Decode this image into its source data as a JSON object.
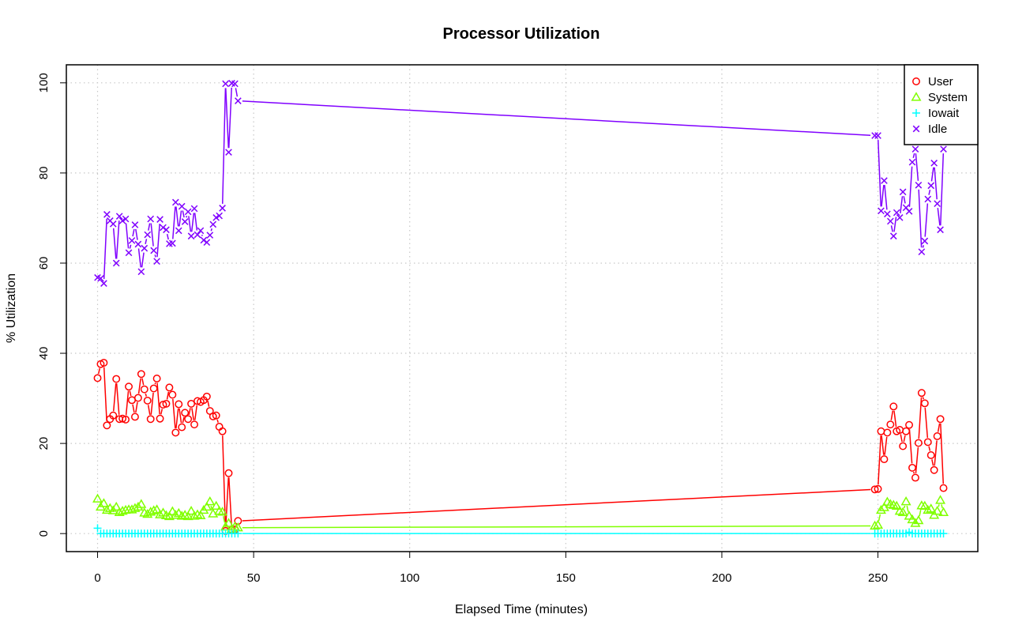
{
  "chart_data": {
    "type": "line",
    "title": "Processor Utilization",
    "xlabel": "Elapsed Time (minutes)",
    "ylabel": "% Utilization",
    "xlim": [
      -10,
      282
    ],
    "ylim": [
      -4,
      104
    ],
    "xticks": [
      0,
      50,
      100,
      150,
      200,
      250
    ],
    "yticks": [
      0,
      20,
      40,
      60,
      80,
      100
    ],
    "grid": true,
    "legend_position": "top-right",
    "x": [
      0,
      1,
      2,
      3,
      4,
      5,
      6,
      7,
      8,
      9,
      10,
      11,
      12,
      13,
      14,
      15,
      16,
      17,
      18,
      19,
      20,
      21,
      22,
      23,
      24,
      25,
      26,
      27,
      28,
      29,
      30,
      31,
      32,
      33,
      34,
      35,
      36,
      37,
      38,
      39,
      40,
      41,
      42,
      43,
      44,
      45,
      249,
      250,
      251,
      252,
      253,
      254,
      255,
      256,
      257,
      258,
      259,
      260,
      261,
      262,
      263,
      264,
      265,
      266,
      267,
      268,
      269,
      270,
      271
    ],
    "series": [
      {
        "name": "User",
        "color": "#ff0000",
        "marker": "circle",
        "values": [
          34.5,
          37.6,
          37.9,
          24,
          25.4,
          26.2,
          34.3,
          25.4,
          25.5,
          25.3,
          32.6,
          29.6,
          25.9,
          30.1,
          35.4,
          32,
          29.5,
          25.4,
          32.2,
          34.4,
          25.5,
          28.6,
          28.8,
          32.4,
          30.8,
          22.4,
          28.7,
          23.6,
          26.8,
          25.4,
          28.8,
          24.2,
          29.4,
          29.2,
          29.6,
          30.4,
          27.2,
          26.0,
          26.2,
          23.7,
          22.7,
          0.6,
          13.4,
          0.8,
          0.9,
          2.8,
          9.8,
          9.9,
          22.7,
          16.5,
          22.4,
          24.2,
          28.2,
          22.7,
          23.0,
          19.4,
          22.7,
          24.1,
          14.6,
          12.4,
          20.1,
          31.2,
          28.9,
          20.3,
          17.4,
          14.1,
          21.6,
          25.4,
          10.1
        ]
      },
      {
        "name": "System",
        "color": "#80ff00",
        "marker": "triangle",
        "values": [
          7.7,
          5.9,
          6.7,
          5.2,
          5.6,
          5.1,
          5.9,
          4.7,
          5.0,
          5.2,
          5.3,
          5.3,
          5.6,
          5.9,
          6.5,
          4.6,
          4.3,
          4.8,
          5.1,
          5.3,
          4.2,
          4.6,
          4.0,
          3.8,
          4.9,
          4.1,
          4.5,
          3.9,
          4.1,
          3.8,
          5.0,
          3.9,
          4.2,
          4.0,
          5.2,
          5.9,
          7.1,
          4.4,
          6.1,
          5.0,
          4.8,
          1.5,
          2.3,
          1.0,
          1.5,
          1.3,
          1.7,
          1.9,
          5.2,
          5.8,
          7.0,
          6.5,
          6.3,
          6.1,
          5.0,
          4.7,
          7.1,
          3.9,
          3.1,
          2.3,
          2.9,
          6.2,
          6.1,
          5.2,
          5.5,
          4.1,
          5.0,
          7.4,
          4.7
        ]
      },
      {
        "name": "Iowait",
        "color": "#00ffff",
        "marker": "plus",
        "values": [
          1.2,
          0,
          0,
          0,
          0,
          0,
          0,
          0,
          0,
          0,
          0,
          0,
          0,
          0,
          0,
          0,
          0,
          0,
          0,
          0,
          0,
          0,
          0,
          0,
          0,
          0,
          0,
          0,
          0,
          0,
          0,
          0,
          0,
          0,
          0,
          0,
          0,
          0,
          0,
          0,
          0,
          0,
          0,
          0,
          0,
          0,
          0,
          0,
          0,
          0,
          0,
          0,
          0,
          0,
          0,
          0,
          0,
          0.3,
          0,
          0,
          0,
          0,
          0,
          0,
          0,
          0,
          0,
          0,
          0
        ]
      },
      {
        "name": "Idle",
        "color": "#8000ff",
        "marker": "cross",
        "values": [
          56.8,
          56.6,
          55.5,
          70.8,
          69.4,
          68.7,
          60.0,
          70.4,
          69.4,
          69.8,
          62.3,
          65.0,
          68.5,
          64.2,
          58.1,
          63.3,
          66.3,
          69.8,
          62.8,
          60.4,
          69.7,
          67.9,
          67.4,
          64.3,
          64.4,
          73.5,
          67.2,
          72.6,
          69.2,
          71.4,
          66.0,
          72.1,
          66.3,
          67.2,
          65.1,
          64.6,
          66.2,
          68.6,
          70.1,
          70.5,
          72.2,
          99.8,
          84.6,
          99.9,
          99.8,
          96.0,
          88.3,
          88.3,
          71.6,
          78.3,
          70.9,
          69.3,
          66.0,
          71.2,
          70.1,
          75.8,
          72.3,
          71.5,
          82.4,
          85.3,
          77.3,
          62.5,
          64.9,
          74.2,
          77.2,
          82.2,
          73.2,
          67.4,
          85.3
        ]
      }
    ]
  }
}
